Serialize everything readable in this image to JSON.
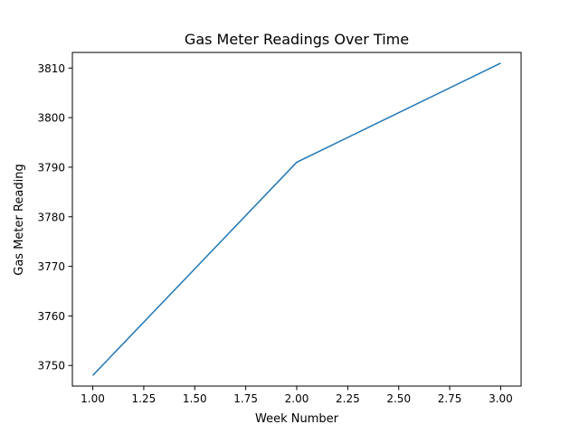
{
  "chart_data": {
    "type": "line",
    "title": "Gas Meter Readings Over Time",
    "xlabel": "Week Number",
    "ylabel": "Gas Meter Reading",
    "x": [
      1,
      2,
      3
    ],
    "series": [
      {
        "values": [
          3748,
          3791,
          3811
        ],
        "color": "#1f77b4"
      }
    ],
    "xlim": [
      0.9,
      3.1
    ],
    "ylim": [
      3745.85,
      3813.15
    ],
    "xticks": [
      1.0,
      1.25,
      1.5,
      1.75,
      2.0,
      2.25,
      2.5,
      2.75,
      3.0
    ],
    "xtick_labels": [
      "1.00",
      "1.25",
      "1.50",
      "1.75",
      "2.00",
      "2.25",
      "2.50",
      "2.75",
      "3.00"
    ],
    "yticks": [
      3750,
      3760,
      3770,
      3780,
      3790,
      3800,
      3810
    ],
    "ytick_labels": [
      "3750",
      "3760",
      "3770",
      "3780",
      "3790",
      "3800",
      "3810"
    ],
    "grid": false,
    "legend": false
  }
}
